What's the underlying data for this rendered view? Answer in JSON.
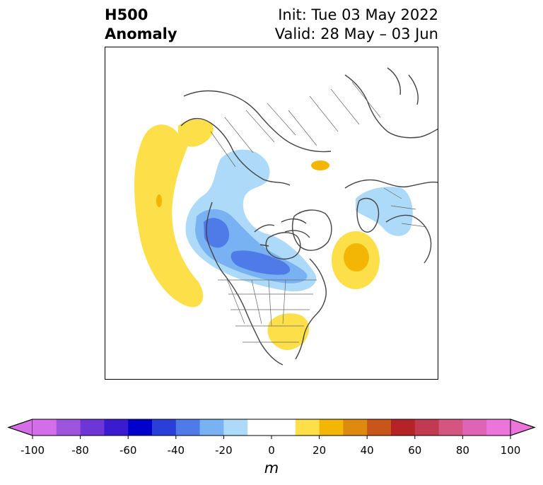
{
  "title": {
    "left_line1": "H500",
    "left_line2": "Anomaly",
    "right_line1": "Init: Tue 03 May 2022",
    "right_line2": "Valid: 28 May – 03 Jun"
  },
  "colorbar": {
    "unit": "m",
    "ticks": [
      "-100",
      "-80",
      "-60",
      "-40",
      "-20",
      "0",
      "20",
      "40",
      "60",
      "80",
      "100"
    ],
    "colors": [
      "#d36de8",
      "#9e55dd",
      "#6d37d8",
      "#3b1bd0",
      "#0000cc",
      "#2a3fd8",
      "#4f7be8",
      "#79b2f2",
      "#acdaf8",
      "#ffffff",
      "#ffffff",
      "#fde049",
      "#f3b604",
      "#de8a0e",
      "#c8561a",
      "#b42325",
      "#c23a52",
      "#d35580",
      "#de64b5",
      "#ec75dc"
    ]
  },
  "anomaly_colors": {
    "light_blue": "#acdaf8",
    "mid_blue": "#79b2f2",
    "blue": "#4f7be8",
    "yellow": "#fde049",
    "gold": "#f3b604"
  }
}
